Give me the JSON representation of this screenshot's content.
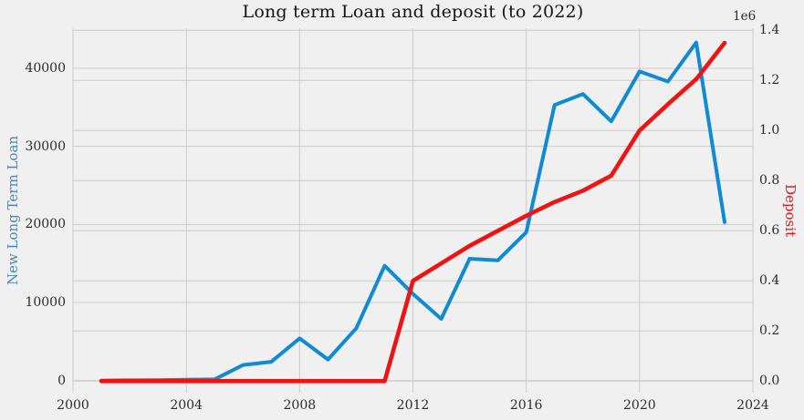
{
  "chart_data": {
    "type": "line",
    "title": "Long term Loan and deposit (to 2022)",
    "grid": true,
    "legend": "none",
    "background_color": "#f0f0f0",
    "grid_color": "#cbcbcb",
    "x": [
      2001,
      2002,
      2003,
      2004,
      2005,
      2006,
      2007,
      2008,
      2009,
      2010,
      2011,
      2012,
      2013,
      2014,
      2015,
      2016,
      2017,
      2018,
      2019,
      2020,
      2021,
      2022,
      2023
    ],
    "series": [
      {
        "name": "New Long Term Loan",
        "axis": "left",
        "color": "#0f8bd5",
        "stroke_width": 4,
        "values": [
          0,
          30,
          60,
          100,
          150,
          2000,
          2400,
          5400,
          2700,
          6700,
          14700,
          11100,
          7900,
          15600,
          15400,
          19000,
          35300,
          36700,
          33200,
          39600,
          38300,
          43300,
          20300
        ]
      },
      {
        "name": "Deposit",
        "axis": "right",
        "color": "#ee1414",
        "stroke_width": 4.6,
        "values": [
          0,
          0,
          0,
          0,
          0,
          0,
          0,
          0,
          0,
          0,
          0,
          400000,
          470000,
          540000,
          600000,
          660000,
          715000,
          760000,
          820000,
          1000000,
          1105000,
          1205000,
          1350000
        ]
      }
    ],
    "axes": {
      "x": {
        "lim": [
          2000,
          2024
        ],
        "ticks": [
          2000,
          2004,
          2008,
          2012,
          2016,
          2020,
          2024
        ],
        "tick_labels": [
          "2000",
          "2004",
          "2008",
          "2012",
          "2016",
          "2020",
          "2024"
        ]
      },
      "left": {
        "label": "New Long Term Loan",
        "label_color": "#4e84b8",
        "lim": [
          -1552,
          45130
        ],
        "ticks": [
          0,
          10000,
          20000,
          30000,
          40000
        ],
        "tick_labels": [
          "0",
          "10000",
          "20000",
          "30000",
          "40000"
        ]
      },
      "right": {
        "label": "Deposit",
        "label_color": "#ee1414",
        "offset_label": "1e6",
        "lim": [
          -46200,
          1408400
        ],
        "ticks": [
          0,
          200000,
          400000,
          600000,
          800000,
          1000000,
          1200000,
          1400000
        ],
        "tick_labels": [
          "0.0",
          "0.2",
          "0.4",
          "0.6",
          "0.8",
          "1.0",
          "1.2",
          "1.4"
        ]
      }
    }
  }
}
